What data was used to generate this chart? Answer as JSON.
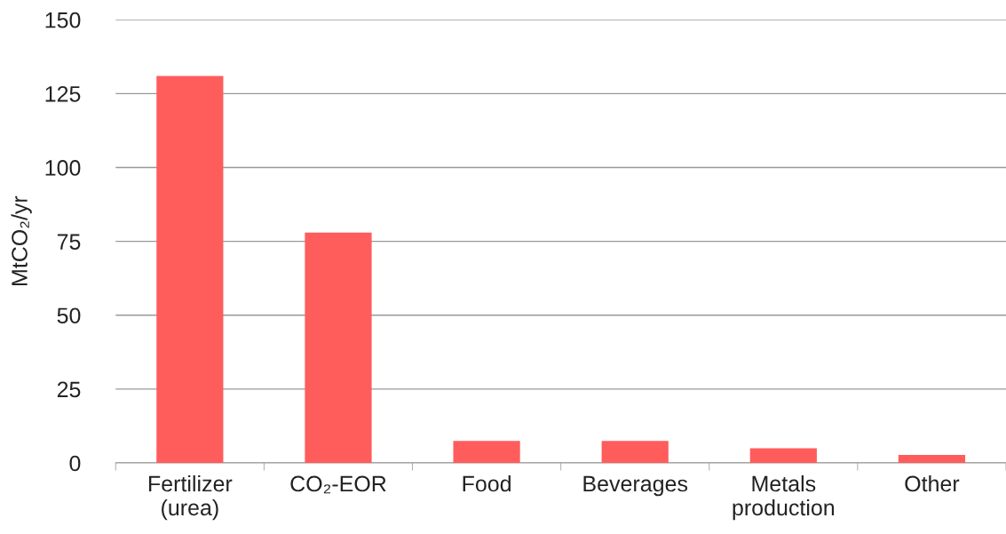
{
  "chart_data": {
    "type": "bar",
    "categories": [
      "Fertilizer\n(urea)",
      "CO₂-EOR",
      "Food",
      "Beverages",
      "Metals\nproduction",
      "Other"
    ],
    "values": [
      131,
      78,
      7.5,
      7.5,
      5,
      2.7
    ],
    "color": "#ff5c5c",
    "ylabel": "MtCO₂/yr",
    "ylim": [
      0,
      150
    ],
    "yticks": [
      0,
      25,
      50,
      75,
      100,
      125,
      150
    ],
    "grid": "y"
  }
}
